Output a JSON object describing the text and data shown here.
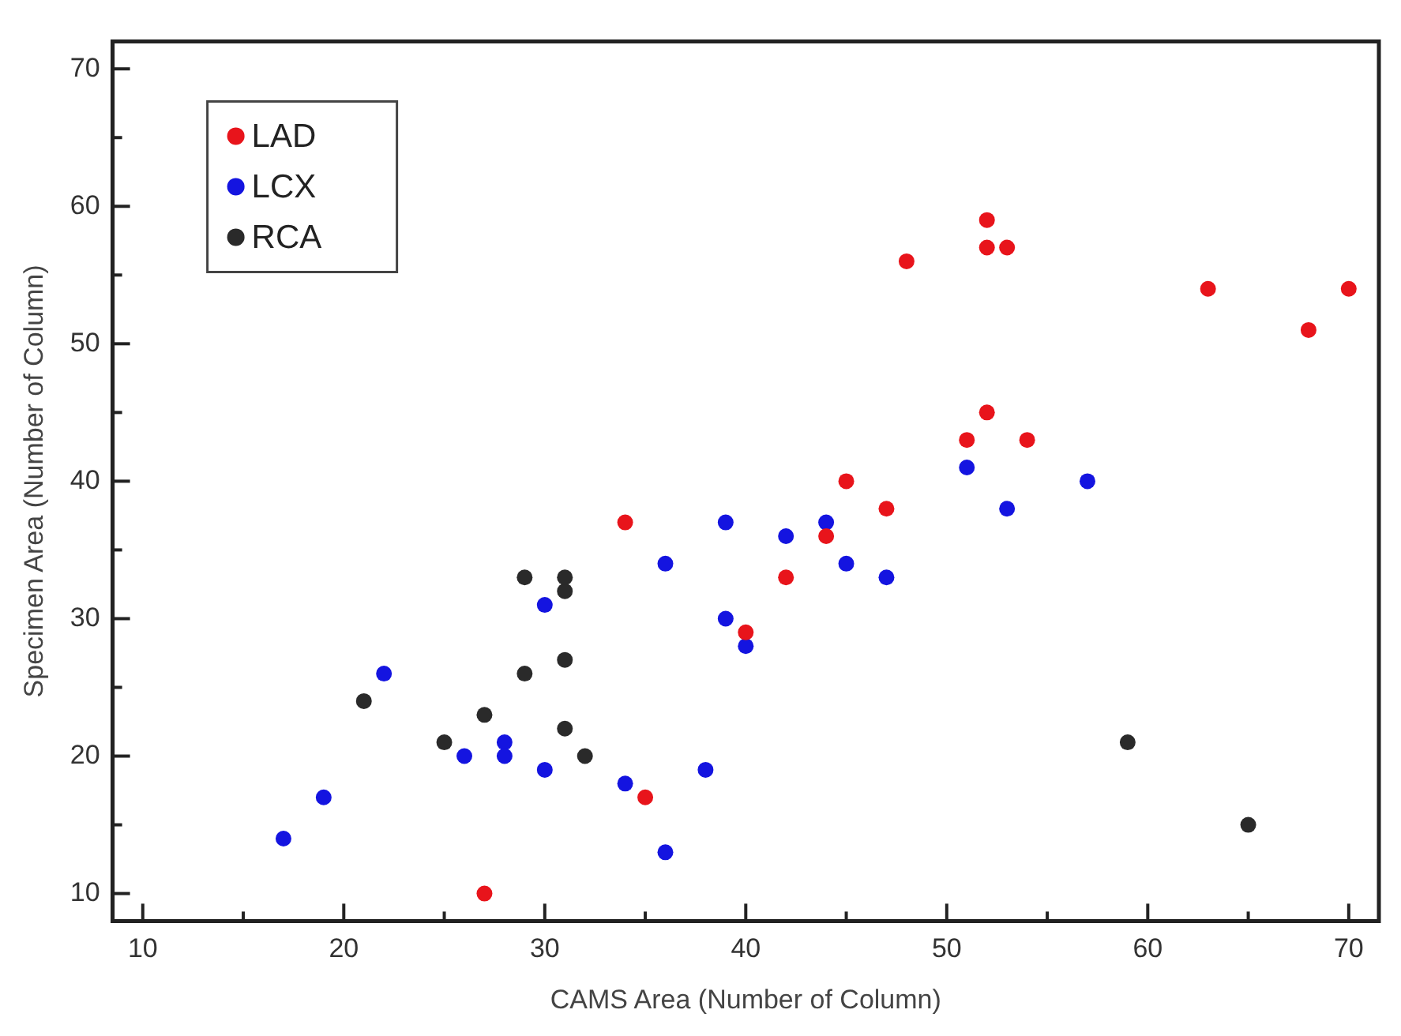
{
  "chart_data": {
    "type": "scatter",
    "xlabel": "CAMS Area (Number of Column)",
    "ylabel": "Specimen Area (Number of Column)",
    "xlim": [
      8.5,
      71.5
    ],
    "ylim": [
      8,
      72
    ],
    "xticks": [
      10,
      {
        "value": 15,
        "label": null
      },
      20,
      {
        "value": 25,
        "label": null
      },
      30,
      {
        "value": 35,
        "label": null
      },
      40,
      {
        "value": 45,
        "label": null
      },
      50,
      {
        "value": 55,
        "label": null
      },
      60,
      {
        "value": 65,
        "label": null
      },
      70
    ],
    "yticks": [
      10,
      {
        "value": 15,
        "label": null
      },
      20,
      {
        "value": 25,
        "label": null
      },
      30,
      {
        "value": 35,
        "label": null
      },
      40,
      {
        "value": 45,
        "label": null
      },
      50,
      {
        "value": 55,
        "label": null
      },
      60,
      {
        "value": 65,
        "label": null
      },
      70
    ],
    "grid": false,
    "legend": "top left",
    "marker": "circle",
    "series": [
      {
        "name": "LAD",
        "color": "#e8141b",
        "x": [
          27,
          35,
          34,
          40,
          42,
          44,
          45,
          47,
          48,
          51,
          52,
          54,
          52,
          52,
          53,
          63,
          68,
          70
        ],
        "values": [
          10,
          17,
          37,
          29,
          33,
          36,
          40,
          38,
          56,
          43,
          45,
          43,
          59,
          57,
          57,
          54,
          51,
          54
        ]
      },
      {
        "name": "LCX",
        "color": "#1414e0",
        "x": [
          17,
          19,
          22,
          26,
          28,
          28,
          30,
          30,
          34,
          36,
          36,
          38,
          39,
          39,
          40,
          42,
          44,
          45,
          47,
          51,
          53,
          57
        ],
        "values": [
          14,
          17,
          26,
          20,
          21,
          20,
          19,
          31,
          18,
          13,
          34,
          19,
          37,
          30,
          28,
          36,
          37,
          34,
          33,
          41,
          38,
          40
        ]
      },
      {
        "name": "RCA",
        "color": "#2a2a2a",
        "x": [
          21,
          25,
          27,
          29,
          29,
          31,
          31,
          31,
          31,
          32,
          59,
          65
        ],
        "values": [
          24,
          21,
          23,
          33,
          26,
          33,
          32,
          27,
          22,
          20,
          21,
          15
        ]
      }
    ]
  }
}
